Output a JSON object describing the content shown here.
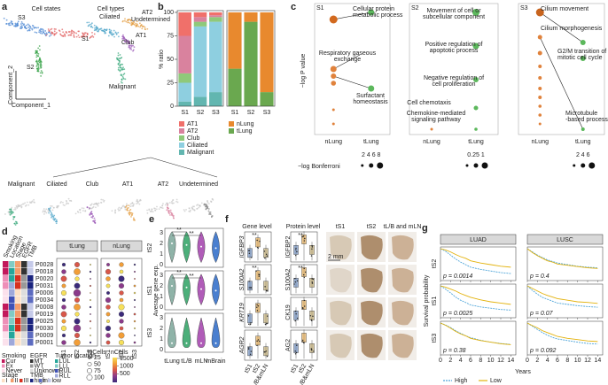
{
  "panels": {
    "a": {
      "label": "a",
      "state_title": "Cell states",
      "type_title": "Cell types",
      "state_labels": [
        "S3",
        "S1",
        "S2"
      ],
      "type_labels": [
        "Ciliated",
        "AT2",
        "Undetermined",
        "Club",
        "AT1",
        "Malignant"
      ],
      "ylabel": "Component_2",
      "xlabel": "Component_1",
      "strip": [
        "Malignant",
        "Ciliated",
        "Club",
        "AT1",
        "AT2",
        "Undetermined"
      ]
    },
    "c": {
      "label": "c",
      "ylabel": "−log P value",
      "categories": [
        "nLung",
        "tLung"
      ],
      "size_title": "−log Bonferroni",
      "subpanels": [
        {
          "title": "S1",
          "color": "#e0643c",
          "size_labels": "2 4 6 8",
          "terms": [
            [
              "Cellular protein",
              "metabolic process"
            ],
            [
              "Respiratory gaseous",
              "exchange"
            ],
            [
              "Surfactant",
              "homeostasis"
            ]
          ]
        },
        {
          "title": "S2",
          "color": "#3faa3f",
          "size_labels": "0.25 1",
          "terms": [
            [
              "Movement of cell or",
              "subcellular component"
            ],
            [
              "Positive regulation of",
              "apoptotic process"
            ],
            [
              "Negative regulation of",
              "cell proliferation"
            ],
            [
              "Cell chemotaxis"
            ],
            [
              "Chemokine-mediated",
              "signaling pathway"
            ]
          ]
        },
        {
          "title": "S3",
          "color": "#4a8fd9",
          "size_labels": "2 4 6",
          "terms": [
            [
              "Cilium movement"
            ],
            [
              "Cilium morphogenesis"
            ],
            [
              "G2/M transition of",
              "mitotic cell cycle"
            ],
            [
              "Microtubule",
              "-based process"
            ]
          ]
        }
      ]
    },
    "d": {
      "label": "d",
      "columns": [
        "Smoking",
        "Location",
        "Stage",
        "EGFR",
        "TMB"
      ],
      "rows": [
        "P0028",
        "P0018",
        "P0020",
        "P0031",
        "P0006",
        "P0034",
        "P0008",
        "P0019",
        "P0025",
        "P0030",
        "P0009",
        "P0001"
      ],
      "groups": [
        "tLung",
        "nLung"
      ],
      "xcats": [
        "tS1",
        "tS2",
        "tS3"
      ],
      "legends": [
        {
          "title": "Smoking",
          "items": [
            "Cur",
            "Ex",
            "Never"
          ],
          "colors": [
            "#c2185b",
            "#ee8fb8",
            "#fbe1ec"
          ]
        },
        {
          "title": "Stage",
          "items": [
            "I",
            "II",
            "III"
          ],
          "colors": [
            "#fde0c5",
            "#f39c6b",
            "#d7301f"
          ]
        },
        {
          "title": "EGFR",
          "items": [
            "MT",
            "WT",
            "Unknown"
          ],
          "colors": [
            "#333333",
            "#999999",
            "#dddddd"
          ]
        },
        {
          "title": "Tumor location",
          "items": [
            "LUL",
            "LLL",
            "RUL",
            "RLL"
          ],
          "colors": [
            "#26a69a",
            "#80cbc4",
            "#3f51b5",
            "#9fa8da"
          ]
        },
        {
          "title": "TMB",
          "items": [
            "high",
            "int",
            "low"
          ],
          "colors": [
            "#1a237e",
            "#5c6bc0",
            "#c5cae9"
          ]
        }
      ],
      "pct_title": "%Cells",
      "pct": [
        25,
        50,
        75,
        100
      ],
      "n_title": "nCells",
      "n": [
        500,
        1000,
        1500
      ]
    },
    "e": {
      "label": "e",
      "rows": [
        "tS2",
        "tS1",
        "tS3"
      ],
      "ylabel": "Average gene exp.",
      "yticks": [
        0,
        1,
        2,
        3
      ],
      "categories": [
        "tLung",
        "tL/B",
        "mLN",
        "mBrain"
      ],
      "colors": [
        "#8fb3a8",
        "#4caf7a",
        "#b05cb8",
        "#4a7fcf"
      ],
      "sig": "**"
    },
    "f": {
      "label": "f",
      "gene_title": "Gene level",
      "protein_title": "Protein level",
      "genes": [
        "IGFBP3",
        "S100A2",
        "KRT19",
        "AGR2"
      ],
      "proteins": [
        "IGFBP2",
        "S100A2",
        "CK19",
        "AG2"
      ],
      "box_categories": [
        "tS1",
        "tS2",
        "tL/B&mLN"
      ],
      "image_columns": [
        "tS1",
        "tS2",
        "tL/B and mLN"
      ],
      "scale": "2 mm",
      "sig": "**"
    }
  },
  "chart_data": [
    {
      "type": "bar",
      "label": "b",
      "stacked": true,
      "ylabel": "% ratio",
      "categories": [
        "S1",
        "S2",
        "S3"
      ],
      "ylim": [
        0,
        100
      ],
      "yticks": [
        0,
        25,
        50,
        75,
        100
      ],
      "series": [
        {
          "name": "AT1",
          "color": "#f0706a",
          "values": [
            25,
            5,
            3
          ]
        },
        {
          "name": "AT2",
          "color": "#d9829e",
          "values": [
            40,
            5,
            2
          ]
        },
        {
          "name": "Club",
          "color": "#8fc97a",
          "values": [
            10,
            5,
            5
          ]
        },
        {
          "name": "Ciliated",
          "color": "#8ecfe0",
          "values": [
            20,
            75,
            75
          ]
        },
        {
          "name": "Malignant",
          "color": "#62b6b0",
          "values": [
            5,
            10,
            15
          ]
        }
      ]
    },
    {
      "type": "bar",
      "stacked": true,
      "categories": [
        "S1",
        "S2",
        "S3"
      ],
      "ylim": [
        0,
        100
      ],
      "series": [
        {
          "name": "nLung",
          "color": "#e8892e",
          "values": [
            60,
            10,
            85
          ]
        },
        {
          "name": "tLung",
          "color": "#6aa84f",
          "values": [
            40,
            90,
            15
          ]
        }
      ]
    },
    {
      "type": "line",
      "label": "g",
      "columns": [
        "LUAD",
        "LUSC"
      ],
      "rows": [
        "tS2",
        "tS1",
        "tS3"
      ],
      "xlabel": "Years",
      "ylabel": "Survival probability",
      "xlim": [
        0,
        15
      ],
      "xticks": [
        0,
        2,
        4,
        6,
        8,
        10,
        12,
        14
      ],
      "ylim": [
        0,
        1
      ],
      "x": [
        0,
        1,
        2,
        3,
        4,
        5,
        6,
        8,
        10,
        12,
        14
      ],
      "series": [
        {
          "name": "High",
          "color": "#4ea5d9"
        },
        {
          "name": "Low",
          "color": "#e3b20c"
        }
      ],
      "panels": [
        {
          "annotation": "p = 0.0014",
          "values": [
            [
              1,
              0.92,
              0.8,
              0.68,
              0.58,
              0.5,
              0.42,
              0.35,
              0.3,
              0.25,
              0.22
            ],
            [
              1,
              0.96,
              0.9,
              0.82,
              0.75,
              0.7,
              0.62,
              0.55,
              0.5,
              0.45,
              0.42
            ]
          ]
        },
        {
          "annotation": "p = 0.4",
          "values": [
            [
              1,
              0.9,
              0.8,
              0.72,
              0.65,
              0.6,
              0.55,
              0.5,
              0.45,
              0.42,
              0.4
            ],
            [
              1,
              0.88,
              0.78,
              0.7,
              0.62,
              0.58,
              0.52,
              0.48,
              0.44,
              0.4,
              0.38
            ]
          ]
        },
        {
          "annotation": "p = 0.0025",
          "values": [
            [
              1,
              0.9,
              0.78,
              0.65,
              0.55,
              0.48,
              0.4,
              0.34,
              0.3,
              0.26,
              0.24
            ],
            [
              1,
              0.96,
              0.9,
              0.84,
              0.76,
              0.7,
              0.64,
              0.56,
              0.5,
              0.46,
              0.42
            ]
          ]
        },
        {
          "annotation": "p = 0.07",
          "values": [
            [
              1,
              0.86,
              0.74,
              0.64,
              0.58,
              0.52,
              0.46,
              0.42,
              0.38,
              0.35,
              0.33
            ],
            [
              1,
              0.92,
              0.84,
              0.76,
              0.7,
              0.65,
              0.6,
              0.55,
              0.5,
              0.48,
              0.45
            ]
          ]
        },
        {
          "annotation": "p = 0.38",
          "values": [
            [
              1,
              0.94,
              0.86,
              0.76,
              0.68,
              0.6,
              0.54,
              0.46,
              0.4,
              0.36,
              0.33
            ],
            [
              1,
              0.93,
              0.84,
              0.74,
              0.66,
              0.6,
              0.52,
              0.45,
              0.4,
              0.35,
              0.32
            ]
          ]
        },
        {
          "annotation": "p = 0.092",
          "values": [
            [
              1,
              0.9,
              0.8,
              0.7,
              0.62,
              0.55,
              0.5,
              0.45,
              0.4,
              0.36,
              0.34
            ],
            [
              1,
              0.92,
              0.85,
              0.76,
              0.7,
              0.64,
              0.58,
              0.52,
              0.48,
              0.44,
              0.42
            ]
          ]
        }
      ]
    }
  ]
}
